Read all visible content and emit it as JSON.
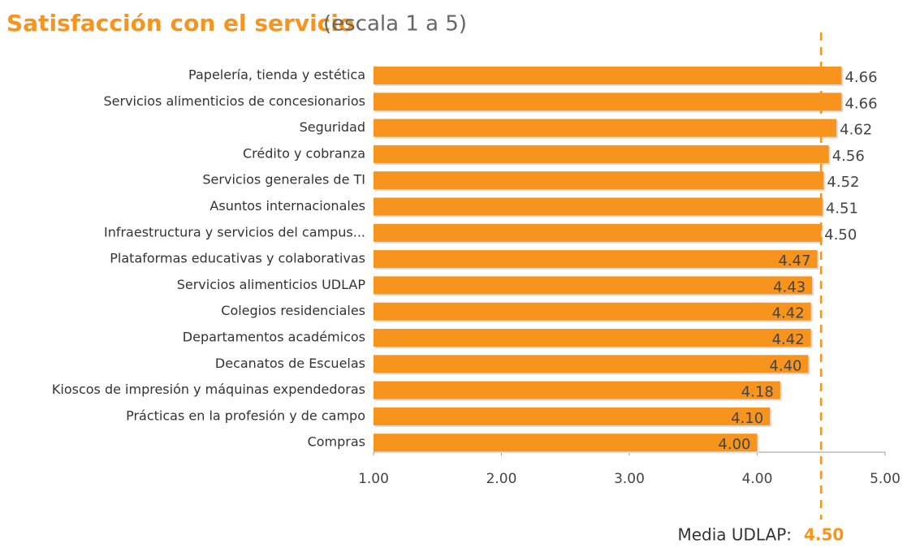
{
  "chart_data": {
    "type": "bar",
    "orientation": "horizontal",
    "title": "Satisfacción con el servicio",
    "subtitle": "(escala 1 a 5)",
    "categories": [
      "Papelería, tienda y estética",
      "Servicios alimenticios de concesionarios",
      "Seguridad",
      "Crédito y cobranza",
      "Servicios generales de TI",
      "Asuntos internacionales",
      "Infraestructura y servicios del campus...",
      "Plataformas educativas y colaborativas",
      "Servicios alimenticios UDLAP",
      "Colegios residenciales",
      "Departamentos académicos",
      "Decanatos de Escuelas",
      "Kioscos de impresión y máquinas expendedoras",
      "Prácticas en la profesión y de campo",
      "Compras"
    ],
    "values": [
      4.66,
      4.66,
      4.62,
      4.56,
      4.52,
      4.51,
      4.5,
      4.47,
      4.43,
      4.42,
      4.42,
      4.4,
      4.18,
      4.1,
      4.0
    ],
    "value_labels": [
      "4.66",
      "4.66",
      "4.62",
      "4.56",
      "4.52",
      "4.51",
      "4.50",
      "4.47",
      "4.43",
      "4.42",
      "4.42",
      "4.40",
      "4.18",
      "4.10",
      "4.00"
    ],
    "color": "#f7941d",
    "xlim": [
      1,
      5
    ],
    "xticks": [
      {
        "value": 1,
        "label": "1.00"
      },
      {
        "value": 2,
        "label": "2.00"
      },
      {
        "value": 3,
        "label": "3.00"
      },
      {
        "value": 4,
        "label": "4.00"
      },
      {
        "value": 5,
        "label": "5.00"
      }
    ],
    "mean": {
      "label": "Media UDLAP:",
      "value": 4.5,
      "value_label": "4.50",
      "color": "#f7941d"
    }
  }
}
